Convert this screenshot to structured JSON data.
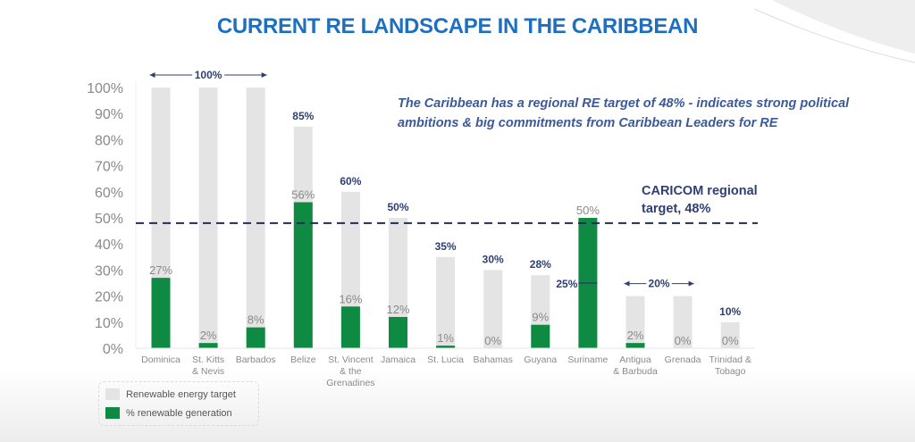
{
  "title": "CURRENT RE LANDSCAPE IN THE CARIBBEAN",
  "note": "The Caribbean has a regional RE target of 48% - indicates strong political ambitions & big commitments from Caribbean Leaders  for RE",
  "colors": {
    "target_bar": "#e4e4e4",
    "generation_bar": "#0f8a43",
    "target_label": "#2e3f73",
    "generation_label": "#8a8a8a",
    "title": "#1f6fbf",
    "regional_line": "#1f2d5a"
  },
  "legend": {
    "items": [
      {
        "label": "Renewable energy target",
        "color": "#e4e4e4"
      },
      {
        "label": "% renewable generation",
        "color": "#0f8a43"
      }
    ]
  },
  "chart_data": {
    "type": "bar",
    "title": "CURRENT RE LANDSCAPE IN THE CARIBBEAN",
    "xlabel": "",
    "ylabel": "",
    "ylim": [
      0,
      100
    ],
    "yticks": [
      "0%",
      "10%",
      "20%",
      "30%",
      "40%",
      "50%",
      "60%",
      "70%",
      "80%",
      "90%",
      "100%"
    ],
    "grid": false,
    "legend_position": "bottom-left",
    "categories": [
      [
        "Dominica"
      ],
      [
        "St. Kitts",
        "& Nevis"
      ],
      [
        "Barbados"
      ],
      [
        "Belize"
      ],
      [
        "St. Vincent",
        "& the",
        "Grenadines"
      ],
      [
        "Jamaica"
      ],
      [
        "St. Lucia"
      ],
      [
        "Bahamas"
      ],
      [
        "Guyana"
      ],
      [
        "Suriname"
      ],
      [
        "Antigua",
        "& Barbuda"
      ],
      [
        "Grenada"
      ],
      [
        "Trinidad &",
        "Tobago"
      ]
    ],
    "series": [
      {
        "name": "Renewable energy target",
        "values": [
          100,
          100,
          100,
          85,
          60,
          50,
          35,
          30,
          28,
          25,
          20,
          20,
          10
        ],
        "labels": [
          "",
          "",
          "",
          "85%",
          "60%",
          "50%",
          "35%",
          "30%",
          "28%",
          "25%",
          "",
          "",
          "10%"
        ]
      },
      {
        "name": "% renewable generation",
        "values": [
          27,
          2,
          8,
          56,
          16,
          12,
          1,
          0,
          9,
          50,
          2,
          0,
          0
        ],
        "labels": [
          "27%",
          "2%",
          "8%",
          "56%",
          "16%",
          "12%",
          "1%",
          "0%",
          "9%",
          "50%",
          "2%",
          "0%",
          "0%"
        ]
      }
    ],
    "group_annotations": [
      {
        "label": "100%",
        "from": 0,
        "to": 2,
        "value": 100
      },
      {
        "label": "20%",
        "from": 10,
        "to": 11,
        "value": 20
      }
    ],
    "reference_line": {
      "value": 48,
      "label_line1": "CARICOM regional",
      "label_line2": "target, 48%",
      "style": "dashed"
    }
  }
}
